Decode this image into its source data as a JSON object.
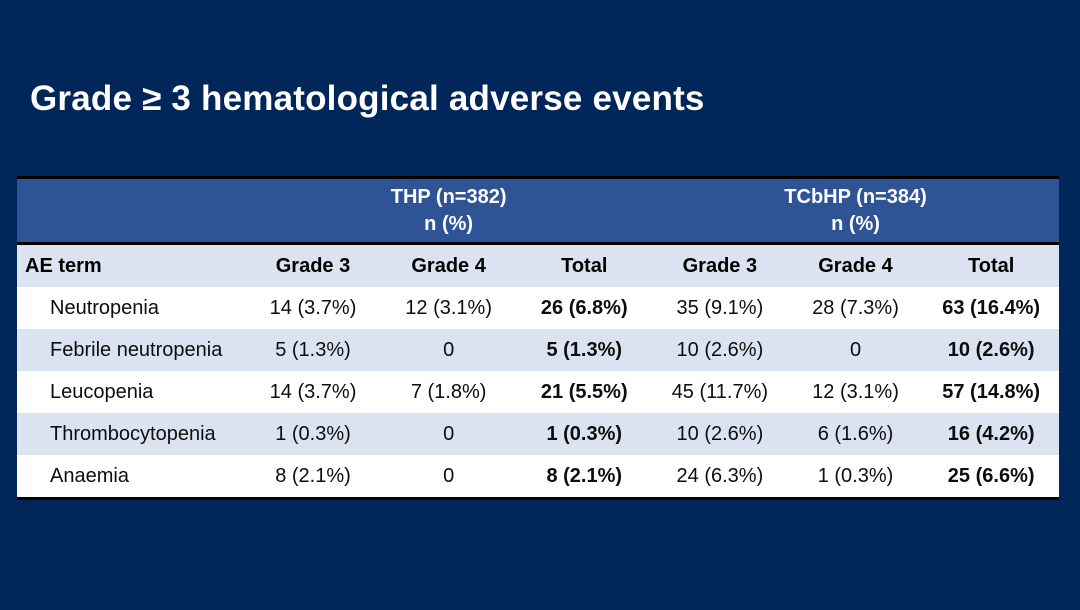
{
  "title": "Grade ≥ 3 hematological adverse events",
  "table": {
    "group_headers": [
      {
        "label": "THP (n=382)",
        "sub": "n (%)"
      },
      {
        "label": "TCbHP (n=384)",
        "sub": "n (%)"
      }
    ],
    "column_headers": [
      "AE term",
      "Grade 3",
      "Grade 4",
      "Total",
      "Grade 3",
      "Grade 4",
      "Total"
    ],
    "rows": [
      {
        "cells": [
          "Neutropenia",
          "14 (3.7%)",
          "12 (3.1%)",
          "26 (6.8%)",
          "35 (9.1%)",
          "28 (7.3%)",
          "63 (16.4%)"
        ]
      },
      {
        "cells": [
          "Febrile neutropenia",
          "5 (1.3%)",
          "0",
          "5 (1.3%)",
          "10 (2.6%)",
          "0",
          "10 (2.6%)"
        ]
      },
      {
        "cells": [
          "Leucopenia",
          "14 (3.7%)",
          "7 (1.8%)",
          "21 (5.5%)",
          "45 (11.7%)",
          "12 (3.1%)",
          "57 (14.8%)"
        ]
      },
      {
        "cells": [
          "Thrombocytopenia",
          "1 (0.3%)",
          "0",
          "1 (0.3%)",
          "10 (2.6%)",
          "6 (1.6%)",
          "16 (4.2%)"
        ]
      },
      {
        "cells": [
          "Anaemia",
          "8 (2.1%)",
          "0",
          "8 (2.1%)",
          "24 (6.3%)",
          "1 (0.3%)",
          "25 (6.6%)"
        ]
      }
    ]
  },
  "colors": {
    "background": "#01265A",
    "group_header_blue": "#2F5496",
    "row_light_blue": "#DBE3F1",
    "row_white": "#FFFFFF",
    "border_black": "#000000",
    "title_text": "#FFFFFF"
  }
}
